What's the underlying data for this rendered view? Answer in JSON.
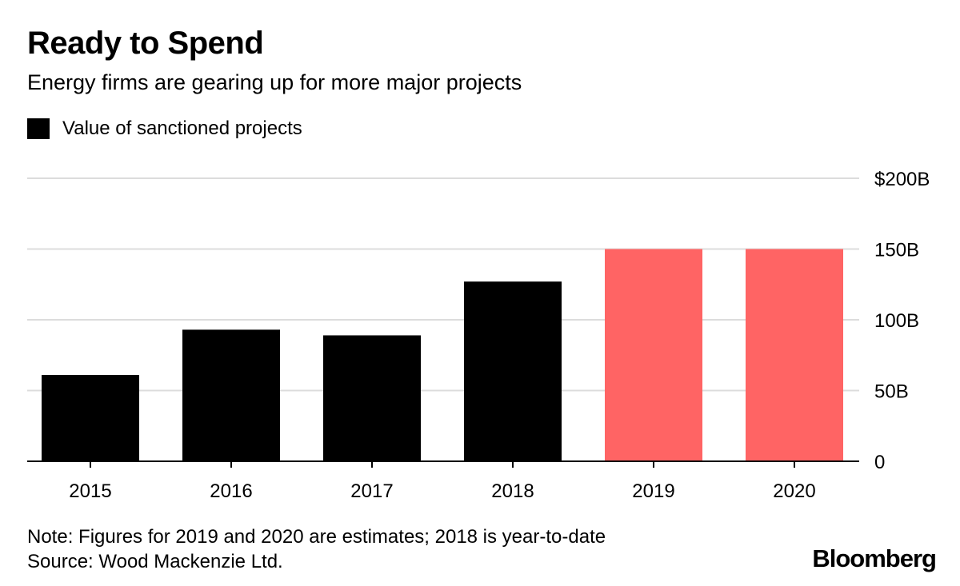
{
  "header": {
    "title": "Ready to Spend",
    "subtitle": "Energy firms are gearing up for more major projects"
  },
  "legend": {
    "label": "Value of sanctioned projects",
    "color": "#000000"
  },
  "footer": {
    "note": "Note: Figures for 2019 and 2020 are estimates; 2018 is year-to-date",
    "source": "Source: Wood Mackenzie Ltd.",
    "brand": "Bloomberg"
  },
  "colors": {
    "actual": "#000000",
    "estimate": "#ff6464",
    "grid": "#dcdcdc",
    "axis": "#000000"
  },
  "chart_data": {
    "type": "bar",
    "title": "Ready to Spend",
    "subtitle": "Energy firms are gearing up for more major projects",
    "xlabel": "",
    "ylabel": "",
    "categories": [
      "2015",
      "2016",
      "2017",
      "2018",
      "2019",
      "2020"
    ],
    "series": [
      {
        "name": "Value of sanctioned projects",
        "values": [
          61,
          93,
          89,
          127,
          150,
          150
        ],
        "colors": [
          "#000000",
          "#000000",
          "#000000",
          "#000000",
          "#ff6464",
          "#ff6464"
        ]
      }
    ],
    "ylim": [
      0,
      200
    ],
    "yticks": [
      0,
      50,
      100,
      150,
      200
    ],
    "ytick_labels": [
      "0",
      "50B",
      "100B",
      "150B",
      "$200B"
    ],
    "y_axis_side": "right",
    "grid": true,
    "legend_position": "top-left"
  }
}
